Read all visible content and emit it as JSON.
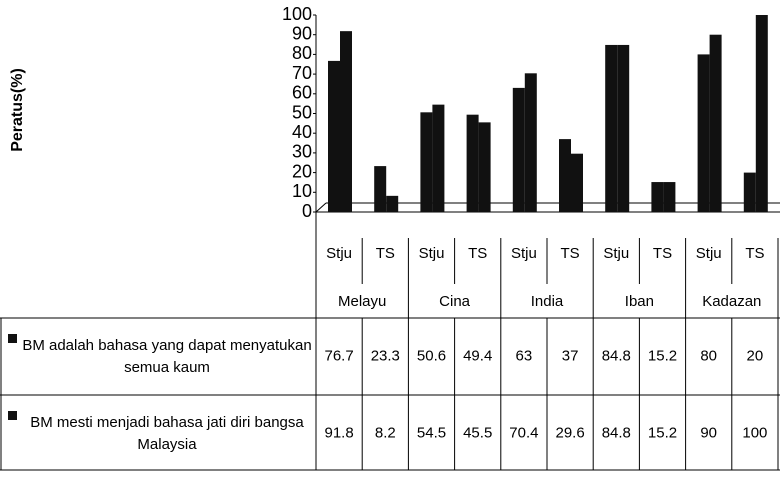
{
  "chart_data": {
    "type": "bar",
    "y_label": "Peratus(%)",
    "categories": [
      "Stju",
      "TS",
      "Stju",
      "TS",
      "Stju",
      "TS",
      "Stju",
      "TS",
      "Stju",
      "TS"
    ],
    "groups": [
      "Melayu",
      "Cina",
      "India",
      "Iban",
      "Kadazan"
    ],
    "series": [
      {
        "name": "BM adalah bahasa yang dapat menyatukan semua kaum",
        "color": "#111111",
        "values": [
          76.7,
          23.3,
          50.6,
          49.4,
          63,
          37,
          84.8,
          15.2,
          80,
          20
        ]
      },
      {
        "name": "BM mesti menjadi bahasa jati diri bangsa Malaysia",
        "color": "#111111",
        "values": [
          91.8,
          8.2,
          54.5,
          45.5,
          70.4,
          29.6,
          84.8,
          15.2,
          90,
          100
        ]
      }
    ],
    "ylim": [
      0,
      100
    ],
    "yticks": [
      0,
      10,
      20,
      30,
      40,
      50,
      60,
      70,
      80,
      90,
      100
    ],
    "data_table": true
  }
}
